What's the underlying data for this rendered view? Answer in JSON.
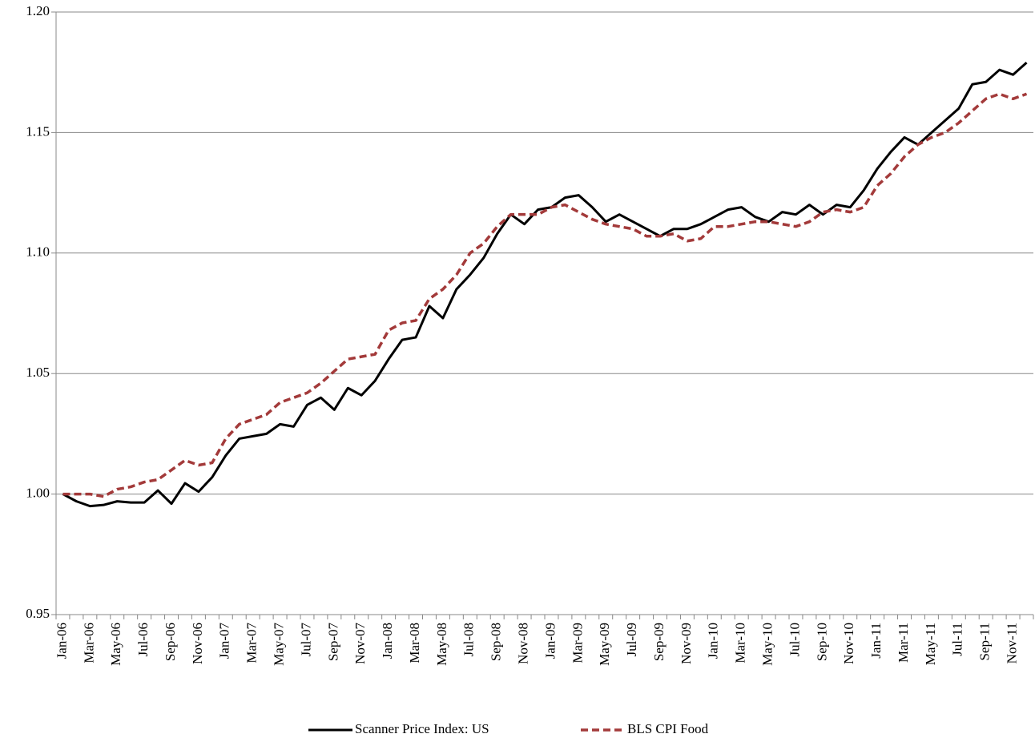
{
  "chart_data": {
    "type": "line",
    "categories": [
      "Jan-06",
      null,
      "Mar-06",
      null,
      "May-06",
      null,
      "Jul-06",
      null,
      "Sep-06",
      null,
      "Nov-06",
      null,
      "Jan-07",
      null,
      "Mar-07",
      null,
      "May-07",
      null,
      "Jul-07",
      null,
      "Sep-07",
      null,
      "Nov-07",
      null,
      "Jan-08",
      null,
      "Mar-08",
      null,
      "May-08",
      null,
      "Jul-08",
      null,
      "Sep-08",
      null,
      "Nov-08",
      null,
      "Jan-09",
      null,
      "Mar-09",
      null,
      "May-09",
      null,
      "Jul-09",
      null,
      "Sep-09",
      null,
      "Nov-09",
      null,
      "Jan-10",
      null,
      "Mar-10",
      null,
      "May-10",
      null,
      "Jul-10",
      null,
      "Sep-10",
      null,
      "Nov-10",
      null,
      "Jan-11",
      null,
      "Mar-11",
      null,
      "May-11",
      null,
      "Jul-11",
      null,
      "Sep-11",
      null,
      "Nov-11",
      null
    ],
    "series": [
      {
        "name": "Scanner Price Index: US",
        "color": "#000000",
        "dash": "solid",
        "values": [
          1.0,
          0.997,
          0.995,
          0.9955,
          0.997,
          0.9965,
          0.9965,
          1.0015,
          0.996,
          1.0045,
          1.001,
          1.007,
          1.016,
          1.023,
          1.024,
          1.025,
          1.029,
          1.028,
          1.037,
          1.04,
          1.035,
          1.044,
          1.041,
          1.047,
          1.056,
          1.064,
          1.065,
          1.078,
          1.073,
          1.085,
          1.091,
          1.098,
          1.108,
          1.116,
          1.112,
          1.118,
          1.119,
          1.123,
          1.124,
          1.119,
          1.113,
          1.116,
          1.113,
          1.11,
          1.107,
          1.11,
          1.11,
          1.112,
          1.115,
          1.118,
          1.119,
          1.115,
          1.113,
          1.117,
          1.116,
          1.12,
          1.116,
          1.12,
          1.119,
          1.126,
          1.135,
          1.142,
          1.148,
          1.145,
          1.15,
          1.155,
          1.16,
          1.17,
          1.171,
          1.176,
          1.174,
          1.179
        ]
      },
      {
        "name": "BLS CPI Food",
        "color": "#a33a3a",
        "dash": "dashed",
        "values": [
          1.0,
          1.0,
          1.0,
          0.999,
          1.002,
          1.003,
          1.005,
          1.006,
          1.01,
          1.014,
          1.012,
          1.013,
          1.023,
          1.029,
          1.031,
          1.033,
          1.038,
          1.04,
          1.042,
          1.046,
          1.051,
          1.056,
          1.057,
          1.058,
          1.068,
          1.071,
          1.072,
          1.081,
          1.085,
          1.091,
          1.1,
          1.104,
          1.111,
          1.116,
          1.116,
          1.116,
          1.119,
          1.12,
          1.117,
          1.114,
          1.112,
          1.111,
          1.11,
          1.107,
          1.107,
          1.108,
          1.105,
          1.106,
          1.111,
          1.111,
          1.112,
          1.113,
          1.113,
          1.112,
          1.111,
          1.113,
          1.117,
          1.118,
          1.117,
          1.119,
          1.128,
          1.133,
          1.14,
          1.145,
          1.148,
          1.15,
          1.154,
          1.159,
          1.164,
          1.166,
          1.164,
          1.166
        ]
      }
    ],
    "ylim": [
      0.95,
      1.2
    ],
    "yticks": [
      0.95,
      {
        "value": 1,
        "label": "1.00"
      },
      1.05,
      {
        "value": 1.1,
        "label": "1.10"
      },
      1.15,
      {
        "value": 1.2,
        "label": "1.20"
      }
    ],
    "grid": true,
    "legend": "bottom"
  }
}
